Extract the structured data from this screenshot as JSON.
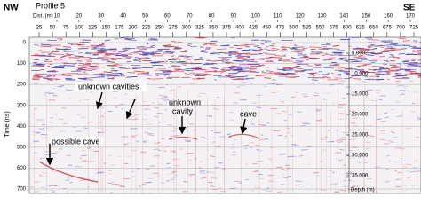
{
  "header": {
    "left": "NW",
    "title": "Profile 5",
    "right": "SE"
  },
  "top_axis": {
    "label": "Dist. (m)",
    "ticks": [
      10,
      20,
      30,
      40,
      50,
      60,
      70,
      80,
      90,
      100,
      110,
      120,
      130,
      140,
      150,
      160,
      170
    ]
  },
  "second_axis": {
    "ticks": [
      25,
      50,
      75,
      100,
      125,
      150,
      175,
      200,
      225,
      250,
      275,
      300,
      325,
      350,
      375,
      400,
      425,
      450,
      475,
      500,
      525,
      550,
      575,
      600,
      625,
      650,
      675,
      700,
      725
    ]
  },
  "left_axis": {
    "label": "Time (ns)",
    "ticks": [
      0,
      100,
      200,
      300,
      400,
      500,
      600,
      700
    ]
  },
  "depth_axis": {
    "label": "Depth (m)",
    "ticks": [
      "5.000",
      "10.000",
      "15.000",
      "20.000",
      "25.000",
      "30.000",
      "35.000"
    ]
  },
  "annotations": {
    "cavities": "unknown cavities",
    "cavity_line1": "unknown",
    "cavity_line2": "cavity",
    "cave": "cave",
    "possible": "possible cave"
  }
}
